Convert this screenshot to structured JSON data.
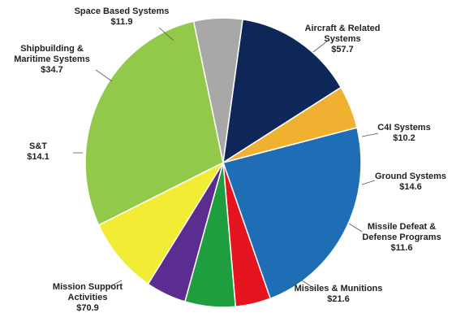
{
  "chart_data": {
    "type": "pie",
    "slices": [
      {
        "label": "Aircraft & Related Systems",
        "lines": [
          "Aircraft & Related",
          "Systems"
        ],
        "value_label": "$57.7",
        "value": 57.7,
        "color": "#1f6db5"
      },
      {
        "label": "C4I Systems",
        "lines": [
          "C4I Systems"
        ],
        "value_label": "$10.2",
        "value": 10.2,
        "color": "#e5141e"
      },
      {
        "label": "Ground Systems",
        "lines": [
          "Ground Systems"
        ],
        "value_label": "$14.6",
        "value": 14.6,
        "color": "#1f9e3f"
      },
      {
        "label": "Missile Defeat & Defense Programs",
        "lines": [
          "Missile Defeat &",
          "Defense Programs"
        ],
        "value_label": "$11.6",
        "value": 11.6,
        "color": "#5b2d91"
      },
      {
        "label": "Missiles & Munitions",
        "lines": [
          "Missiles & Munitions"
        ],
        "value_label": "$21.6",
        "value": 21.6,
        "color": "#f2ec34"
      },
      {
        "label": "Mission Support Activities",
        "lines": [
          "Mission Support",
          "Activities"
        ],
        "value_label": "$70.9",
        "value": 70.9,
        "color": "#93c94a"
      },
      {
        "label": "S&T",
        "lines": [
          "S&T"
        ],
        "value_label": "$14.1",
        "value": 14.1,
        "color": "#a8a8a8"
      },
      {
        "label": "Shipbuilding & Maritime Systems",
        "lines": [
          "Shipbuilding &",
          "Maritime Systems"
        ],
        "value_label": "$34.7",
        "value": 34.7,
        "color": "#0f2659"
      },
      {
        "label": "Space Based Systems",
        "lines": [
          "Space Based Systems"
        ],
        "value_label": "$11.9",
        "value": 11.9,
        "color": "#f0b030"
      }
    ]
  }
}
